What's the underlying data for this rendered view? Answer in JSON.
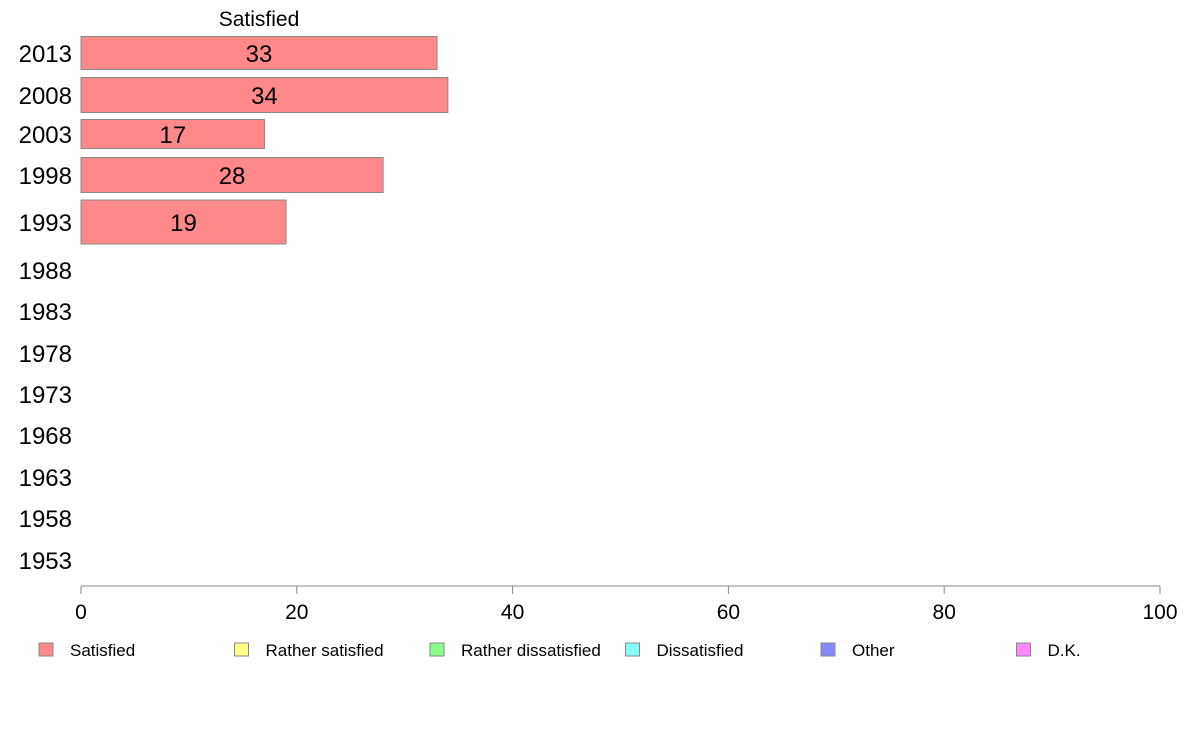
{
  "chart_data": {
    "type": "bar",
    "orientation": "horizontal",
    "stacked": true,
    "column_title": "Satisfied",
    "categories": [
      "2013",
      "2008",
      "2003",
      "1998",
      "1993",
      "1988",
      "1983",
      "1978",
      "1973",
      "1968",
      "1963",
      "1958",
      "1953"
    ],
    "series": [
      {
        "name": "Satisfied",
        "color": "#ff8888",
        "values": [
          33,
          34,
          17,
          28,
          19,
          null,
          null,
          null,
          null,
          null,
          null,
          null,
          null
        ]
      },
      {
        "name": "Rather satisfied",
        "color": "#ffff88",
        "values": [
          null,
          null,
          null,
          null,
          null,
          null,
          null,
          null,
          null,
          null,
          null,
          null,
          null
        ]
      },
      {
        "name": "Rather dissatisfied",
        "color": "#88ff88",
        "values": [
          null,
          null,
          null,
          null,
          null,
          null,
          null,
          null,
          null,
          null,
          null,
          null,
          null
        ]
      },
      {
        "name": "Dissatisfied",
        "color": "#88ffff",
        "values": [
          null,
          null,
          null,
          null,
          null,
          null,
          null,
          null,
          null,
          null,
          null,
          null,
          null
        ]
      },
      {
        "name": "Other",
        "color": "#8888ff",
        "values": [
          null,
          null,
          null,
          null,
          null,
          null,
          null,
          null,
          null,
          null,
          null,
          null,
          null
        ]
      },
      {
        "name": "D.K.",
        "color": "#ff88ff",
        "values": [
          null,
          null,
          null,
          null,
          null,
          null,
          null,
          null,
          null,
          null,
          null,
          null,
          null
        ]
      }
    ],
    "xlim": [
      0,
      100
    ],
    "xticks": [
      0,
      20,
      40,
      60,
      80,
      100
    ],
    "xlabel": "",
    "ylabel": "",
    "grid": false,
    "legend_position": "bottom"
  }
}
